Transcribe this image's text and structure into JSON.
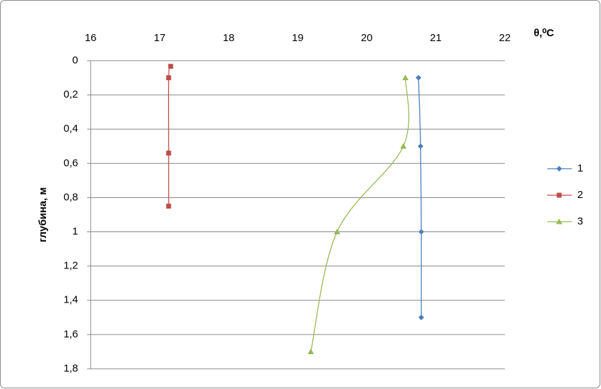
{
  "chart_data": {
    "type": "scatter",
    "xlabel": "θ,⁰C",
    "ylabel": "глубина, м",
    "xlim": [
      16,
      22
    ],
    "xticks": [
      16,
      17,
      18,
      19,
      20,
      21,
      22
    ],
    "ylim": [
      0,
      1.8
    ],
    "y_inverted": true,
    "yticks": [
      0,
      {
        "value": 0.2,
        "label": "0,2"
      },
      {
        "value": 0.4,
        "label": "0,4"
      },
      {
        "value": 0.6,
        "label": "0,6"
      },
      {
        "value": 0.8,
        "label": "0,8"
      },
      1,
      {
        "value": 1.2,
        "label": "1,2"
      },
      {
        "value": 1.4,
        "label": "1,4"
      },
      {
        "value": 1.6,
        "label": "1,6"
      },
      {
        "value": 1.8,
        "label": "1,8"
      }
    ],
    "grid": true,
    "legend": "right",
    "series": [
      {
        "name": "1",
        "color": "#4a7ebb",
        "marker": "diamond",
        "x": [
          20.75,
          20.78,
          20.79,
          20.79
        ],
        "values": [
          0.1,
          0.5,
          1.0,
          1.5
        ]
      },
      {
        "name": "2",
        "color": "#be4b48",
        "marker": "square",
        "x": [
          17.16,
          17.13,
          17.13,
          17.13
        ],
        "values": [
          0.033,
          0.1,
          0.54,
          0.85
        ]
      },
      {
        "name": "3",
        "color": "#98b954",
        "marker": "triangle",
        "x": [
          20.56,
          20.53,
          19.57,
          19.19
        ],
        "values": [
          0.1,
          0.5,
          1.0,
          1.7
        ]
      }
    ]
  }
}
